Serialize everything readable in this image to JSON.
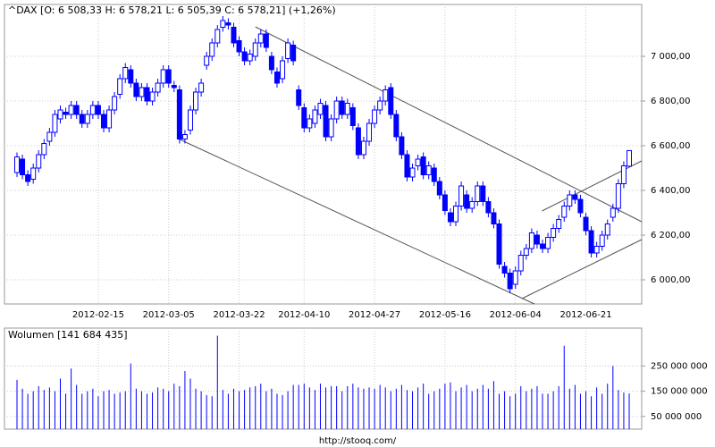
{
  "chart_data": [
    {
      "type": "candlestick",
      "title": "^DAX [O: 6 508,33  H: 6 578,21  L: 6 505,39  C: 6 578,21] (+1,26%)",
      "categories": [
        null,
        null,
        null,
        null,
        null,
        null,
        null,
        null,
        null,
        null,
        null,
        null,
        null,
        null,
        null,
        "2012-02-15",
        null,
        null,
        null,
        null,
        null,
        null,
        null,
        null,
        null,
        null,
        null,
        null,
        "2012-03-05",
        null,
        null,
        null,
        null,
        null,
        null,
        null,
        null,
        null,
        null,
        null,
        null,
        "2012-03-22",
        null,
        null,
        null,
        null,
        null,
        null,
        null,
        null,
        null,
        null,
        null,
        "2012-04-10",
        null,
        null,
        null,
        null,
        null,
        null,
        null,
        null,
        null,
        null,
        null,
        null,
        "2012-04-27",
        null,
        null,
        null,
        null,
        null,
        null,
        null,
        null,
        null,
        null,
        null,
        null,
        "2012-05-16",
        null,
        null,
        null,
        null,
        null,
        null,
        null,
        null,
        null,
        null,
        null,
        null,
        "2012-06-04",
        null,
        null,
        null,
        null,
        null,
        null,
        null,
        null,
        null,
        null,
        null,
        null,
        "2012-06-21",
        null,
        null,
        null,
        null,
        null,
        null,
        null,
        null
      ],
      "open": [
        6480,
        6540,
        6470,
        6450,
        6500,
        6560,
        6620,
        6660,
        6720,
        6750,
        6740,
        6780,
        6740,
        6700,
        6740,
        6780,
        6740,
        6680,
        6760,
        6830,
        6900,
        6940,
        6880,
        6820,
        6860,
        6800,
        6840,
        6880,
        6940,
        6870,
        6850,
        6630,
        6670,
        6760,
        6840,
        6960,
        7000,
        7060,
        7130,
        7150,
        7130,
        7070,
        7020,
        6980,
        7000,
        7060,
        7100,
        7000,
        6930,
        6900,
        6990,
        7050,
        6850,
        6770,
        6680,
        6700,
        6740,
        6780,
        6640,
        6720,
        6800,
        6740,
        6770,
        6680,
        6560,
        6620,
        6700,
        6760,
        6800,
        6860,
        6740,
        6640,
        6560,
        6460,
        6510,
        6550,
        6470,
        6500,
        6440,
        6380,
        6300,
        6260,
        6330,
        6380,
        6320,
        6350,
        6420,
        6350,
        6300,
        6250,
        6060,
        6030,
        5980,
        6040,
        6110,
        6140,
        6200,
        6160,
        6140,
        6190,
        6230,
        6280,
        6330,
        6380,
        6360,
        6280,
        6220,
        6120,
        6150,
        6200,
        6280,
        6320,
        6430,
        6508.33
      ],
      "high": [
        6570,
        6560,
        6490,
        6520,
        6580,
        6630,
        6680,
        6760,
        6780,
        6770,
        6800,
        6800,
        6760,
        6760,
        6800,
        6800,
        6760,
        6780,
        6840,
        6920,
        6970,
        6960,
        6900,
        6880,
        6880,
        6860,
        6900,
        6960,
        6960,
        6890,
        6870,
        6670,
        6780,
        6860,
        6900,
        7020,
        7080,
        7140,
        7180,
        7170,
        7150,
        7090,
        7040,
        7030,
        7080,
        7120,
        7120,
        7020,
        6950,
        7000,
        7080,
        7070,
        6870,
        6790,
        6740,
        6780,
        6810,
        6800,
        6740,
        6820,
        6820,
        6810,
        6790,
        6700,
        6640,
        6720,
        6780,
        6820,
        6870,
        6880,
        6760,
        6660,
        6580,
        6520,
        6560,
        6570,
        6530,
        6520,
        6460,
        6400,
        6320,
        6350,
        6440,
        6400,
        6370,
        6440,
        6440,
        6370,
        6320,
        6270,
        6080,
        6050,
        6060,
        6130,
        6160,
        6230,
        6220,
        6180,
        6210,
        6250,
        6290,
        6350,
        6400,
        6400,
        6380,
        6300,
        6240,
        6170,
        6220,
        6270,
        6340,
        6450,
        6530,
        6578.21
      ],
      "low": [
        6460,
        6450,
        6420,
        6430,
        6480,
        6540,
        6600,
        6640,
        6700,
        6720,
        6720,
        6720,
        6680,
        6680,
        6720,
        6720,
        6660,
        6660,
        6740,
        6810,
        6880,
        6860,
        6800,
        6800,
        6780,
        6780,
        6820,
        6860,
        6860,
        6840,
        6610,
        6610,
        6650,
        6740,
        6820,
        6940,
        6980,
        7040,
        7110,
        7120,
        7040,
        7000,
        6960,
        6960,
        6980,
        7040,
        7020,
        6920,
        6860,
        6880,
        6970,
        6960,
        6760,
        6660,
        6660,
        6680,
        6720,
        6620,
        6620,
        6700,
        6720,
        6720,
        6670,
        6540,
        6540,
        6600,
        6680,
        6740,
        6780,
        6720,
        6620,
        6540,
        6440,
        6440,
        6490,
        6450,
        6450,
        6420,
        6360,
        6290,
        6240,
        6240,
        6310,
        6300,
        6300,
        6330,
        6330,
        6280,
        6230,
        6050,
        6010,
        5940,
        5960,
        6020,
        6090,
        6120,
        6140,
        6120,
        6120,
        6170,
        6210,
        6260,
        6310,
        6340,
        6280,
        6200,
        6100,
        6100,
        6130,
        6180,
        6260,
        6300,
        6410,
        6505.39
      ],
      "close": [
        6550,
        6470,
        6440,
        6500,
        6560,
        6610,
        6660,
        6740,
        6760,
        6740,
        6780,
        6740,
        6700,
        6740,
        6780,
        6740,
        6680,
        6760,
        6820,
        6900,
        6950,
        6880,
        6820,
        6860,
        6800,
        6840,
        6880,
        6940,
        6880,
        6860,
        6630,
        6650,
        6760,
        6840,
        6880,
        7000,
        7060,
        7120,
        7160,
        7140,
        7060,
        7020,
        6980,
        7010,
        7060,
        7100,
        7040,
        6940,
        6880,
        6980,
        7060,
        6980,
        6780,
        6680,
        6720,
        6760,
        6790,
        6640,
        6720,
        6800,
        6740,
        6790,
        6690,
        6560,
        6620,
        6700,
        6760,
        6800,
        6850,
        6740,
        6640,
        6560,
        6460,
        6500,
        6540,
        6470,
        6510,
        6440,
        6380,
        6310,
        6260,
        6330,
        6420,
        6320,
        6350,
        6420,
        6350,
        6300,
        6250,
        6070,
        6030,
        5960,
        6040,
        6110,
        6140,
        6210,
        6160,
        6140,
        6190,
        6230,
        6270,
        6330,
        6380,
        6360,
        6300,
        6220,
        6120,
        6150,
        6200,
        6250,
        6320,
        6430,
        6510,
        6578.21
      ],
      "color": "#0000ff",
      "up_fill": "#ffffff",
      "ylim": [
        5892,
        7232
      ],
      "yticks": [
        {
          "value": 6000,
          "label": "6 000,00"
        },
        {
          "value": 6200,
          "label": "6 200,00"
        },
        {
          "value": 6400,
          "label": "6 400,00"
        },
        {
          "value": 6600,
          "label": "6 600,00"
        },
        {
          "value": 6800,
          "label": "6 800,00"
        },
        {
          "value": 7000,
          "label": "7 000,00"
        }
      ],
      "grid": true,
      "trendlines": [
        {
          "x": [
            44,
            115.3
          ],
          "y": [
            7132,
            6260
          ]
        },
        {
          "x": [
            29.7,
            95.5
          ],
          "y": [
            6632,
            5892
          ]
        },
        {
          "x": [
            93.2,
            115.3
          ],
          "y": [
            5916,
            6180
          ]
        },
        {
          "x": [
            96.9,
            115.3
          ],
          "y": [
            6308,
            6532
          ]
        }
      ]
    },
    {
      "type": "bar",
      "title": "Wolumen [141 684 435]",
      "values": [
        195000000,
        160000000,
        140000000,
        150000000,
        170000000,
        155000000,
        165000000,
        150000000,
        200000000,
        140000000,
        240000000,
        175000000,
        140000000,
        150000000,
        160000000,
        130000000,
        150000000,
        155000000,
        140000000,
        145000000,
        150000000,
        260000000,
        160000000,
        150000000,
        140000000,
        145000000,
        165000000,
        160000000,
        150000000,
        180000000,
        170000000,
        230000000,
        200000000,
        160000000,
        150000000,
        135000000,
        130000000,
        370000000,
        155000000,
        140000000,
        160000000,
        150000000,
        155000000,
        165000000,
        170000000,
        180000000,
        150000000,
        160000000,
        140000000,
        135000000,
        150000000,
        175000000,
        175000000,
        180000000,
        165000000,
        155000000,
        180000000,
        165000000,
        170000000,
        170000000,
        150000000,
        170000000,
        180000000,
        165000000,
        160000000,
        165000000,
        160000000,
        175000000,
        165000000,
        150000000,
        160000000,
        175000000,
        155000000,
        150000000,
        165000000,
        180000000,
        140000000,
        150000000,
        160000000,
        180000000,
        185000000,
        150000000,
        165000000,
        175000000,
        150000000,
        160000000,
        175000000,
        160000000,
        190000000,
        140000000,
        150000000,
        130000000,
        140000000,
        170000000,
        150000000,
        160000000,
        170000000,
        140000000,
        140000000,
        150000000,
        170000000,
        330000000,
        160000000,
        175000000,
        140000000,
        150000000,
        130000000,
        165000000,
        140000000,
        180000000,
        250000000,
        155000000,
        145000000,
        141684435
      ],
      "color": "#0000ff",
      "ylim": [
        0,
        400000000
      ],
      "yticks": [
        {
          "value": 50000000,
          "label": "50 000 000"
        },
        {
          "value": 150000000,
          "label": "150 000 000"
        },
        {
          "value": 250000000,
          "label": "250 000 000"
        }
      ],
      "grid": true
    }
  ],
  "source": "http://stooq.com/"
}
